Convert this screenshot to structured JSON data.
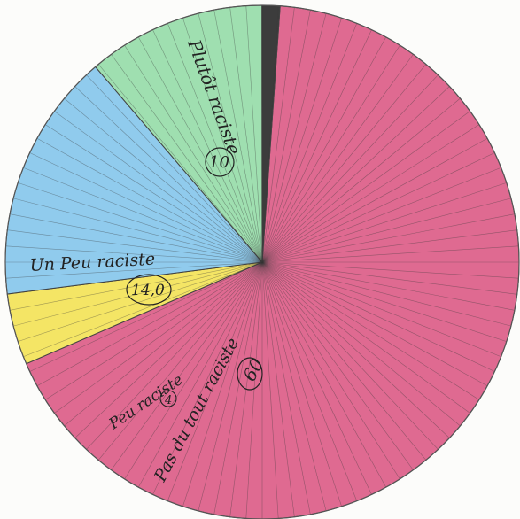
{
  "chart_data": {
    "type": "pie",
    "title": "",
    "slices": [
      {
        "label": "Pas du tout raciste",
        "value": 60,
        "value_label": "60",
        "color": "#d9507e"
      },
      {
        "label": "Peu raciste",
        "value": 4,
        "value_label": "4",
        "color": "#f2e04a"
      },
      {
        "label": "Un Peu raciste",
        "value": 14,
        "value_label": "14,0",
        "color": "#7cc2ea"
      },
      {
        "label": "Plutôt raciste",
        "value": 10,
        "value_label": "10",
        "color": "#8ed9a2"
      },
      {
        "label": "",
        "value": 1,
        "value_label": "",
        "color": "#1a1a1a"
      }
    ],
    "legend": "none",
    "start_angle_deg": 4,
    "direction": "clockwise"
  }
}
